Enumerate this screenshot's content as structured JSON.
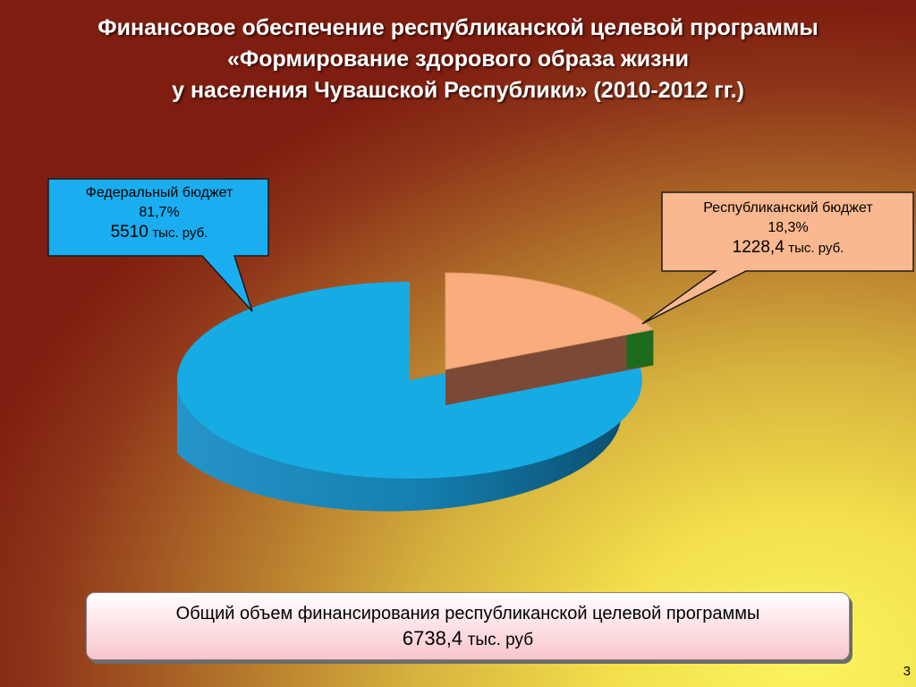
{
  "title": {
    "line1": "Финансовое обеспечение республиканской целевой программы",
    "line2": "«Формирование здорового образа жизни",
    "line3": "у населения Чувашской Республики»  (2010-2012 гг.)"
  },
  "chart_data": {
    "type": "pie",
    "slices": [
      {
        "label": "Федеральный бюджет",
        "percent_label": "81,7%",
        "percent": 81.7,
        "value": 5510,
        "value_label": "5510",
        "unit": "тыс. руб.",
        "color": "#17abe3",
        "side_color": "#0e6f9a"
      },
      {
        "label": "Республиканский бюджет",
        "percent_label": "18,3%",
        "percent": 18.3,
        "value": 1228.4,
        "value_label": "1228,4",
        "unit": "тыс. руб.",
        "color": "#f9ad7c",
        "side_color": "#7b4a36"
      }
    ]
  },
  "callout_colors": {
    "federal": "#1aaef0",
    "republican": "#f9b88f"
  },
  "total": {
    "line1": "Общий объем финансирования республиканской целевой программы",
    "value": "6738,4",
    "unit": "тыс. руб"
  },
  "page_number": "3"
}
